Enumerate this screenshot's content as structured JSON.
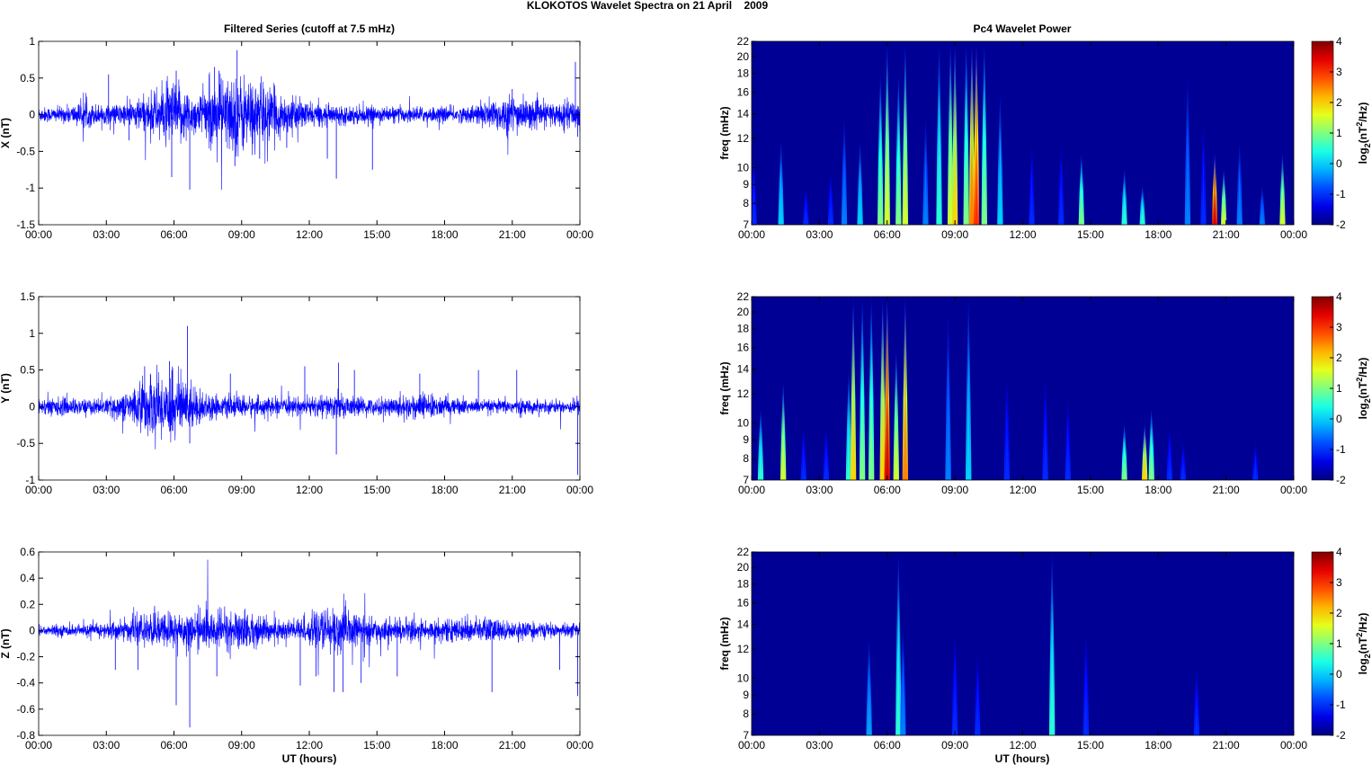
{
  "chart_data": {
    "title": "KLOKOTOS Wavelet Spectra on 21 April    2009",
    "left_title": "Filtered Series (cutoff at 7.5 mHz)",
    "right_title": "Pc4 Wavelet Power",
    "xlabel": "UT (hours)",
    "x_tick_labels": [
      "00:00",
      "03:00",
      "06:00",
      "09:00",
      "12:00",
      "15:00",
      "18:00",
      "21:00",
      "00:00"
    ],
    "xlim": [
      0,
      24
    ],
    "time_series": [
      {
        "type": "line",
        "name": "X",
        "ylabel": "X (nT)",
        "ylim": [
          -1.5,
          1
        ],
        "yticks": [
          -1.5,
          -1,
          -0.5,
          0,
          0.5,
          1
        ],
        "yticklabels": [
          "-1.5",
          "-1",
          "-0.5",
          "0",
          "0.5",
          "1"
        ],
        "envelope_hourly": [
          0.05,
          0.05,
          0.08,
          0.06,
          0.08,
          0.14,
          0.22,
          0.12,
          0.24,
          0.26,
          0.2,
          0.12,
          0.08,
          0.06,
          0.06,
          0.05,
          0.05,
          0.05,
          0.05,
          0.05,
          0.1,
          0.13,
          0.08,
          0.08,
          0.1
        ],
        "spikes": [
          [
            3.1,
            0.55
          ],
          [
            4.0,
            -0.35
          ],
          [
            5.9,
            -0.85
          ],
          [
            6.1,
            0.6
          ],
          [
            6.7,
            -1.02
          ],
          [
            7.8,
            0.65
          ],
          [
            8.0,
            0.6
          ],
          [
            8.7,
            -0.7
          ],
          [
            8.8,
            0.88
          ],
          [
            9.8,
            -0.6
          ],
          [
            11.0,
            -0.45
          ],
          [
            12.8,
            -0.6
          ],
          [
            13.2,
            -0.87
          ],
          [
            14.8,
            -0.75
          ],
          [
            21.0,
            0.35
          ],
          [
            23.8,
            0.72
          ],
          [
            23.9,
            -0.3
          ]
        ]
      },
      {
        "type": "line",
        "name": "Y",
        "ylabel": "Y (nT)",
        "ylim": [
          -1,
          1.5
        ],
        "yticks": [
          -1,
          -0.5,
          0,
          0.5,
          1,
          1.5
        ],
        "yticklabels": [
          "-1",
          "-0.5",
          "0",
          "0.5",
          "1",
          "1.5"
        ],
        "envelope_hourly": [
          0.05,
          0.06,
          0.05,
          0.05,
          0.1,
          0.2,
          0.22,
          0.12,
          0.06,
          0.07,
          0.06,
          0.05,
          0.06,
          0.08,
          0.06,
          0.05,
          0.07,
          0.09,
          0.06,
          0.05,
          0.04,
          0.05,
          0.04,
          0.04,
          0.05
        ],
        "spikes": [
          [
            4.7,
            0.55
          ],
          [
            5.8,
            0.62
          ],
          [
            6.6,
            1.1
          ],
          [
            6.7,
            -0.5
          ],
          [
            8.5,
            0.45
          ],
          [
            11.8,
            0.55
          ],
          [
            13.2,
            -0.65
          ],
          [
            13.3,
            0.6
          ],
          [
            14.0,
            0.5
          ],
          [
            16.9,
            0.45
          ],
          [
            19.5,
            0.5
          ],
          [
            21.2,
            0.5
          ],
          [
            23.9,
            -0.93
          ]
        ]
      },
      {
        "type": "line",
        "name": "Z",
        "ylabel": "Z (nT)",
        "ylim": [
          -0.8,
          0.6
        ],
        "yticks": [
          -0.8,
          -0.6,
          -0.4,
          -0.2,
          0,
          0.2,
          0.4,
          0.6
        ],
        "yticklabels": [
          "-0.8",
          "-0.6",
          "-0.4",
          "-0.2",
          "0",
          "0.2",
          "0.4",
          "0.6"
        ],
        "envelope_hourly": [
          0.02,
          0.02,
          0.02,
          0.03,
          0.04,
          0.06,
          0.07,
          0.06,
          0.07,
          0.07,
          0.05,
          0.04,
          0.05,
          0.09,
          0.06,
          0.04,
          0.04,
          0.04,
          0.04,
          0.04,
          0.05,
          0.03,
          0.03,
          0.02,
          0.03
        ],
        "spikes": [
          [
            3.4,
            -0.3
          ],
          [
            4.4,
            -0.3
          ],
          [
            6.1,
            -0.57
          ],
          [
            6.7,
            -0.74
          ],
          [
            7.9,
            -0.35
          ],
          [
            11.6,
            -0.42
          ],
          [
            12.3,
            -0.35
          ],
          [
            13.1,
            -0.47
          ],
          [
            13.5,
            -0.47
          ],
          [
            14.3,
            -0.4
          ],
          [
            15.9,
            -0.35
          ],
          [
            20.1,
            -0.47
          ],
          [
            23.1,
            -0.3
          ],
          [
            23.9,
            -0.5
          ]
        ]
      }
    ],
    "wavelet_power": [
      {
        "type": "heatmap",
        "name": "X",
        "ylabel": "freq (mHz)",
        "ylim": [
          7,
          22
        ],
        "yscale": "log",
        "yticks": [
          7,
          8,
          9,
          10,
          12,
          14,
          16,
          18,
          20,
          22
        ],
        "clabel": "log2(nT2/Hz)",
        "clim": [
          -2,
          4
        ],
        "cticks": [
          -2,
          -1,
          0,
          1,
          2,
          3,
          4
        ],
        "bursts": [
          [
            0.1,
            -1,
            11
          ],
          [
            1.3,
            0,
            12
          ],
          [
            2.4,
            -1,
            9
          ],
          [
            3.5,
            -1,
            10
          ],
          [
            4.1,
            -0.5,
            14
          ],
          [
            4.8,
            0,
            12
          ],
          [
            5.7,
            1,
            18
          ],
          [
            6.0,
            1.5,
            22
          ],
          [
            6.5,
            1,
            18
          ],
          [
            6.8,
            1.5,
            22
          ],
          [
            7.7,
            -0.5,
            14
          ],
          [
            8.3,
            0.5,
            22
          ],
          [
            8.8,
            1.5,
            22
          ],
          [
            9.0,
            2,
            22
          ],
          [
            9.5,
            1,
            22
          ],
          [
            9.75,
            2.5,
            22
          ],
          [
            9.95,
            3,
            22
          ],
          [
            10.3,
            1,
            22
          ],
          [
            11.0,
            0,
            16
          ],
          [
            12.4,
            -1,
            12
          ],
          [
            13.7,
            -1,
            12
          ],
          [
            14.6,
            1,
            11
          ],
          [
            16.5,
            0.5,
            10
          ],
          [
            17.3,
            0.5,
            9
          ],
          [
            19.3,
            -0.5,
            18
          ],
          [
            20.0,
            -1,
            14
          ],
          [
            20.5,
            3.5,
            11
          ],
          [
            20.9,
            1.5,
            10
          ],
          [
            21.6,
            -0.5,
            12
          ],
          [
            22.6,
            -0.5,
            9
          ],
          [
            23.5,
            1.5,
            11
          ]
        ]
      },
      {
        "type": "heatmap",
        "name": "Y",
        "ylabel": "freq (mHz)",
        "ylim": [
          7,
          22
        ],
        "yscale": "log",
        "yticks": [
          7,
          8,
          9,
          10,
          12,
          14,
          16,
          18,
          20,
          22
        ],
        "clabel": "log2(nT2/Hz)",
        "clim": [
          -2,
          4
        ],
        "cticks": [
          -2,
          -1,
          0,
          1,
          2,
          3,
          4
        ],
        "bursts": [
          [
            0.4,
            0.5,
            11
          ],
          [
            1.4,
            1.5,
            13
          ],
          [
            2.3,
            -1,
            10
          ],
          [
            3.3,
            -1,
            10
          ],
          [
            4.3,
            0.5,
            14
          ],
          [
            4.5,
            2,
            22
          ],
          [
            4.9,
            1,
            22
          ],
          [
            5.3,
            1,
            22
          ],
          [
            5.8,
            2,
            22
          ],
          [
            6.0,
            3.5,
            22
          ],
          [
            6.4,
            1.5,
            16
          ],
          [
            6.8,
            2.5,
            22
          ],
          [
            8.7,
            -0.5,
            20
          ],
          [
            9.6,
            0,
            22
          ],
          [
            11.3,
            -1,
            14
          ],
          [
            13.0,
            -1,
            14
          ],
          [
            14.0,
            -1,
            12
          ],
          [
            16.5,
            1,
            10
          ],
          [
            17.4,
            2,
            10
          ],
          [
            17.7,
            1,
            11
          ],
          [
            18.5,
            -1,
            10
          ],
          [
            19.1,
            -1,
            9
          ],
          [
            22.3,
            -1,
            9
          ]
        ]
      },
      {
        "type": "heatmap",
        "name": "Z",
        "ylabel": "freq (mHz)",
        "ylim": [
          7,
          22
        ],
        "yscale": "log",
        "yticks": [
          7,
          8,
          9,
          10,
          12,
          14,
          16,
          18,
          20,
          22
        ],
        "clabel": "log2(nT2/Hz)",
        "clim": [
          -2,
          4
        ],
        "cticks": [
          -2,
          -1,
          0,
          1,
          2,
          3,
          4
        ],
        "bursts": [
          [
            5.2,
            -0.3,
            13
          ],
          [
            6.5,
            0.5,
            22
          ],
          [
            6.7,
            -0.5,
            14
          ],
          [
            9.0,
            -1,
            14
          ],
          [
            10.0,
            -1,
            12
          ],
          [
            13.3,
            0.5,
            22
          ],
          [
            14.8,
            -1,
            14
          ],
          [
            19.7,
            -1,
            11
          ]
        ]
      }
    ]
  }
}
